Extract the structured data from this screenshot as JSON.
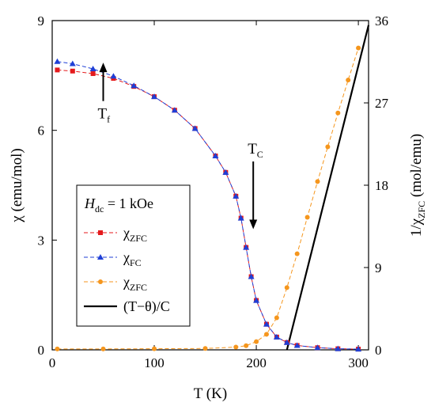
{
  "chart_data": {
    "type": "scatter",
    "xlabel": "T  (K)",
    "ylabel_left": "χ  (emu/mol)",
    "ylabel_right": "1/χ_ZFC  (mol/emu)",
    "xlim": [
      0,
      310
    ],
    "ylim_left": [
      0,
      9
    ],
    "ylim_right": [
      0,
      36
    ],
    "xticks": [
      0,
      100,
      200,
      300
    ],
    "yticks_left": [
      0,
      3,
      6,
      9
    ],
    "yticks_right": [
      0,
      9,
      18,
      27,
      36
    ],
    "legend_title": "H_dc = 1 kOe",
    "legend_position": "center-left",
    "series": [
      {
        "name": "χ_ZFC",
        "axis": "left",
        "marker": "square",
        "color": "#e41a1c",
        "x": [
          5,
          20,
          40,
          60,
          80,
          100,
          120,
          140,
          160,
          170,
          180,
          185,
          190,
          195,
          200,
          210,
          220,
          230,
          240,
          260,
          280,
          300
        ],
        "y": [
          7.65,
          7.62,
          7.55,
          7.42,
          7.2,
          6.92,
          6.55,
          6.05,
          5.3,
          4.85,
          4.2,
          3.6,
          2.8,
          2.0,
          1.35,
          0.7,
          0.35,
          0.2,
          0.12,
          0.06,
          0.03,
          0.02
        ]
      },
      {
        "name": "χ_FC",
        "axis": "left",
        "marker": "triangle",
        "color": "#1f3fd6",
        "x": [
          5,
          20,
          40,
          60,
          80,
          100,
          120,
          140,
          160,
          170,
          180,
          185,
          190,
          195,
          200,
          210,
          220,
          230,
          240,
          260,
          280,
          300
        ],
        "y": [
          7.88,
          7.82,
          7.68,
          7.48,
          7.22,
          6.92,
          6.55,
          6.05,
          5.3,
          4.85,
          4.2,
          3.6,
          2.8,
          2.0,
          1.35,
          0.7,
          0.35,
          0.2,
          0.12,
          0.06,
          0.03,
          0.02
        ]
      },
      {
        "name": "χ_ZFC",
        "axis": "right",
        "marker": "circle",
        "color": "#f5961d",
        "x": [
          5,
          50,
          100,
          150,
          180,
          190,
          200,
          210,
          220,
          230,
          240,
          250,
          260,
          270,
          280,
          290,
          300
        ],
        "y": [
          0.1,
          0.1,
          0.12,
          0.15,
          0.3,
          0.45,
          0.9,
          1.7,
          3.5,
          6.8,
          10.5,
          14.5,
          18.4,
          22.2,
          25.9,
          29.5,
          33.0
        ]
      }
    ],
    "fit": {
      "name": "(T−θ)/C",
      "axis": "right",
      "color": "#000000",
      "x": [
        230,
        310
      ],
      "y": [
        0,
        35.5
      ]
    },
    "annotations": [
      {
        "base": "T",
        "sub": "f",
        "x": 50,
        "arrow_from_y": 6.8,
        "arrow_to_y": 7.85
      },
      {
        "base": "T",
        "sub": "C",
        "x": 197,
        "arrow_from_y": 5.15,
        "arrow_to_y": 3.3
      }
    ]
  }
}
